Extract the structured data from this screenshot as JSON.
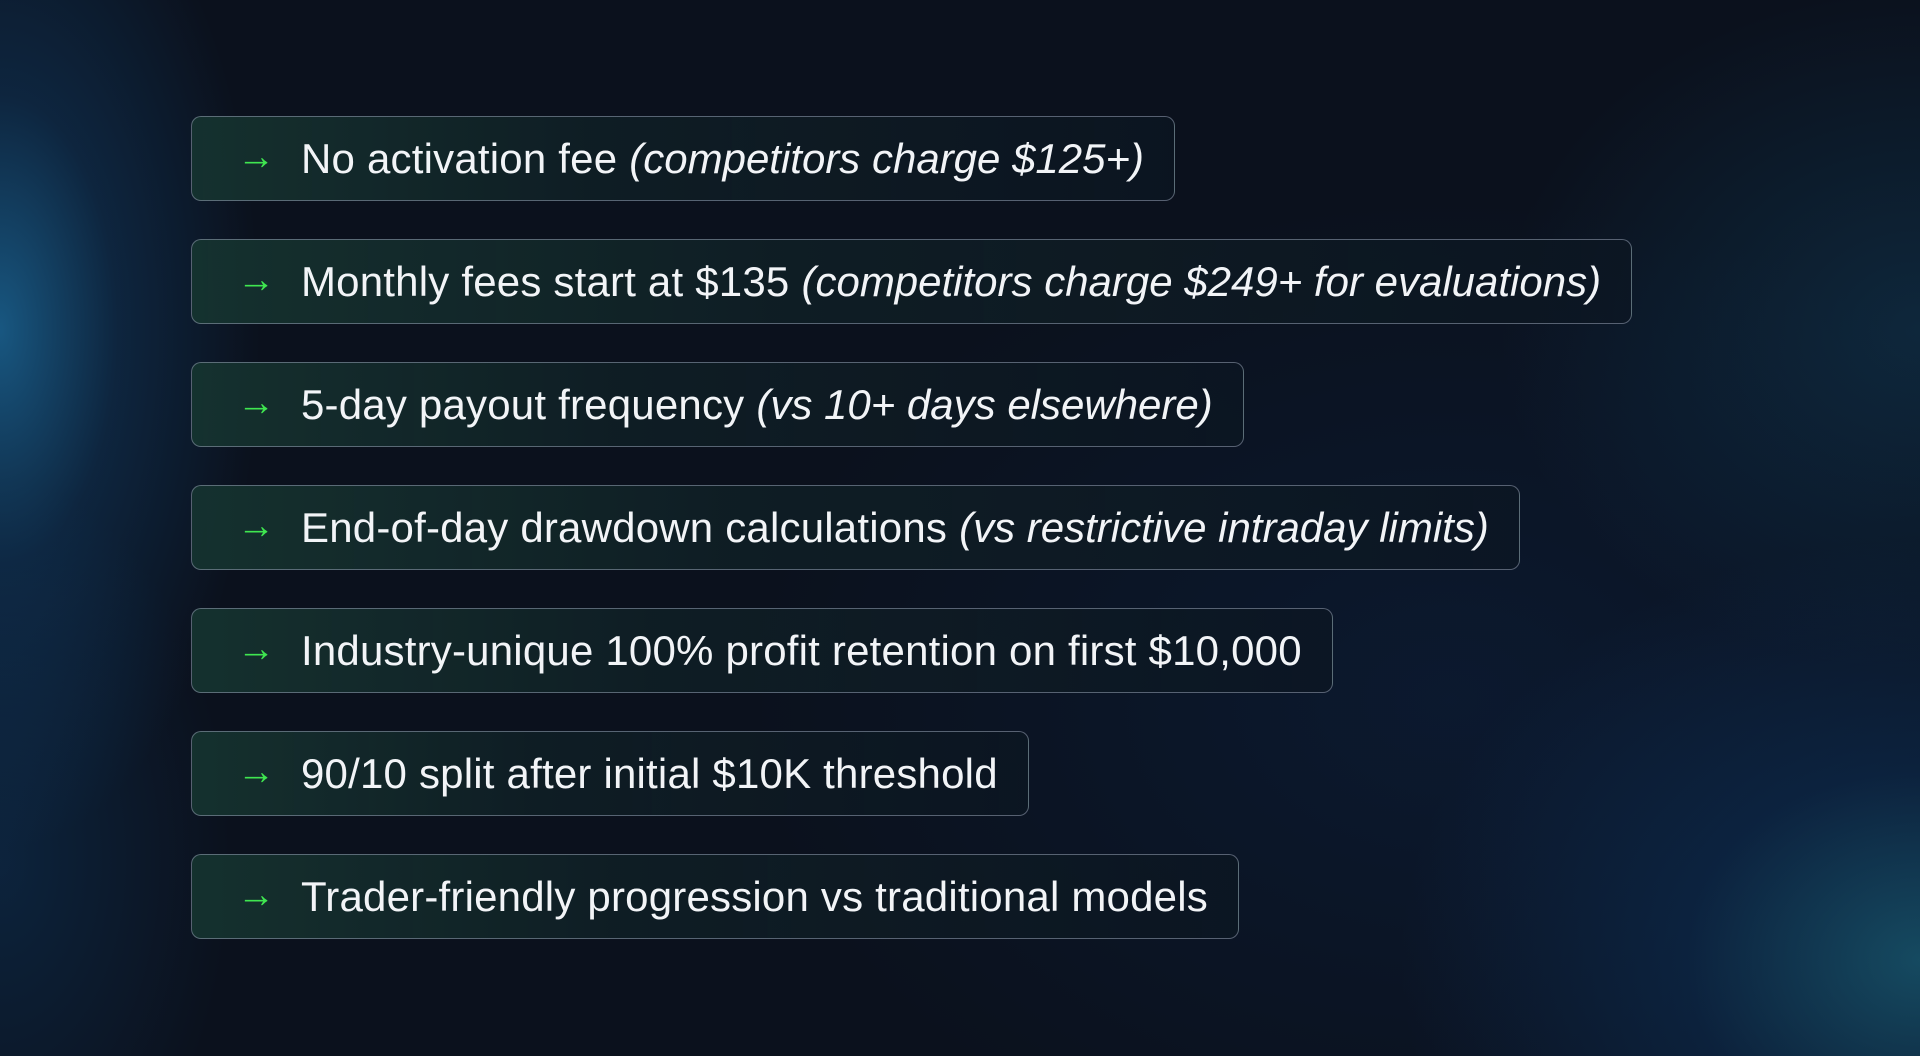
{
  "colors": {
    "arrow": "#3fe650",
    "text": "#f2f4f7",
    "background": "#0b111d",
    "border": "#969fb4"
  },
  "arrow_icon": "arrow-right-icon",
  "items": [
    {
      "text": "No activation fee",
      "note": "(competitors charge $125+)"
    },
    {
      "text": "Monthly fees start at $135",
      "note": "(competitors charge $249+ for evaluations)"
    },
    {
      "text": "5-day payout frequency",
      "note": "(vs 10+ days elsewhere)"
    },
    {
      "text": "End-of-day drawdown calculations",
      "note": "(vs restrictive intraday limits)"
    },
    {
      "text": "Industry-unique 100% profit retention on first $10,000",
      "note": ""
    },
    {
      "text": "90/10 split after initial $10K threshold",
      "note": ""
    },
    {
      "text": "Trader-friendly progression vs traditional models",
      "note": ""
    }
  ]
}
